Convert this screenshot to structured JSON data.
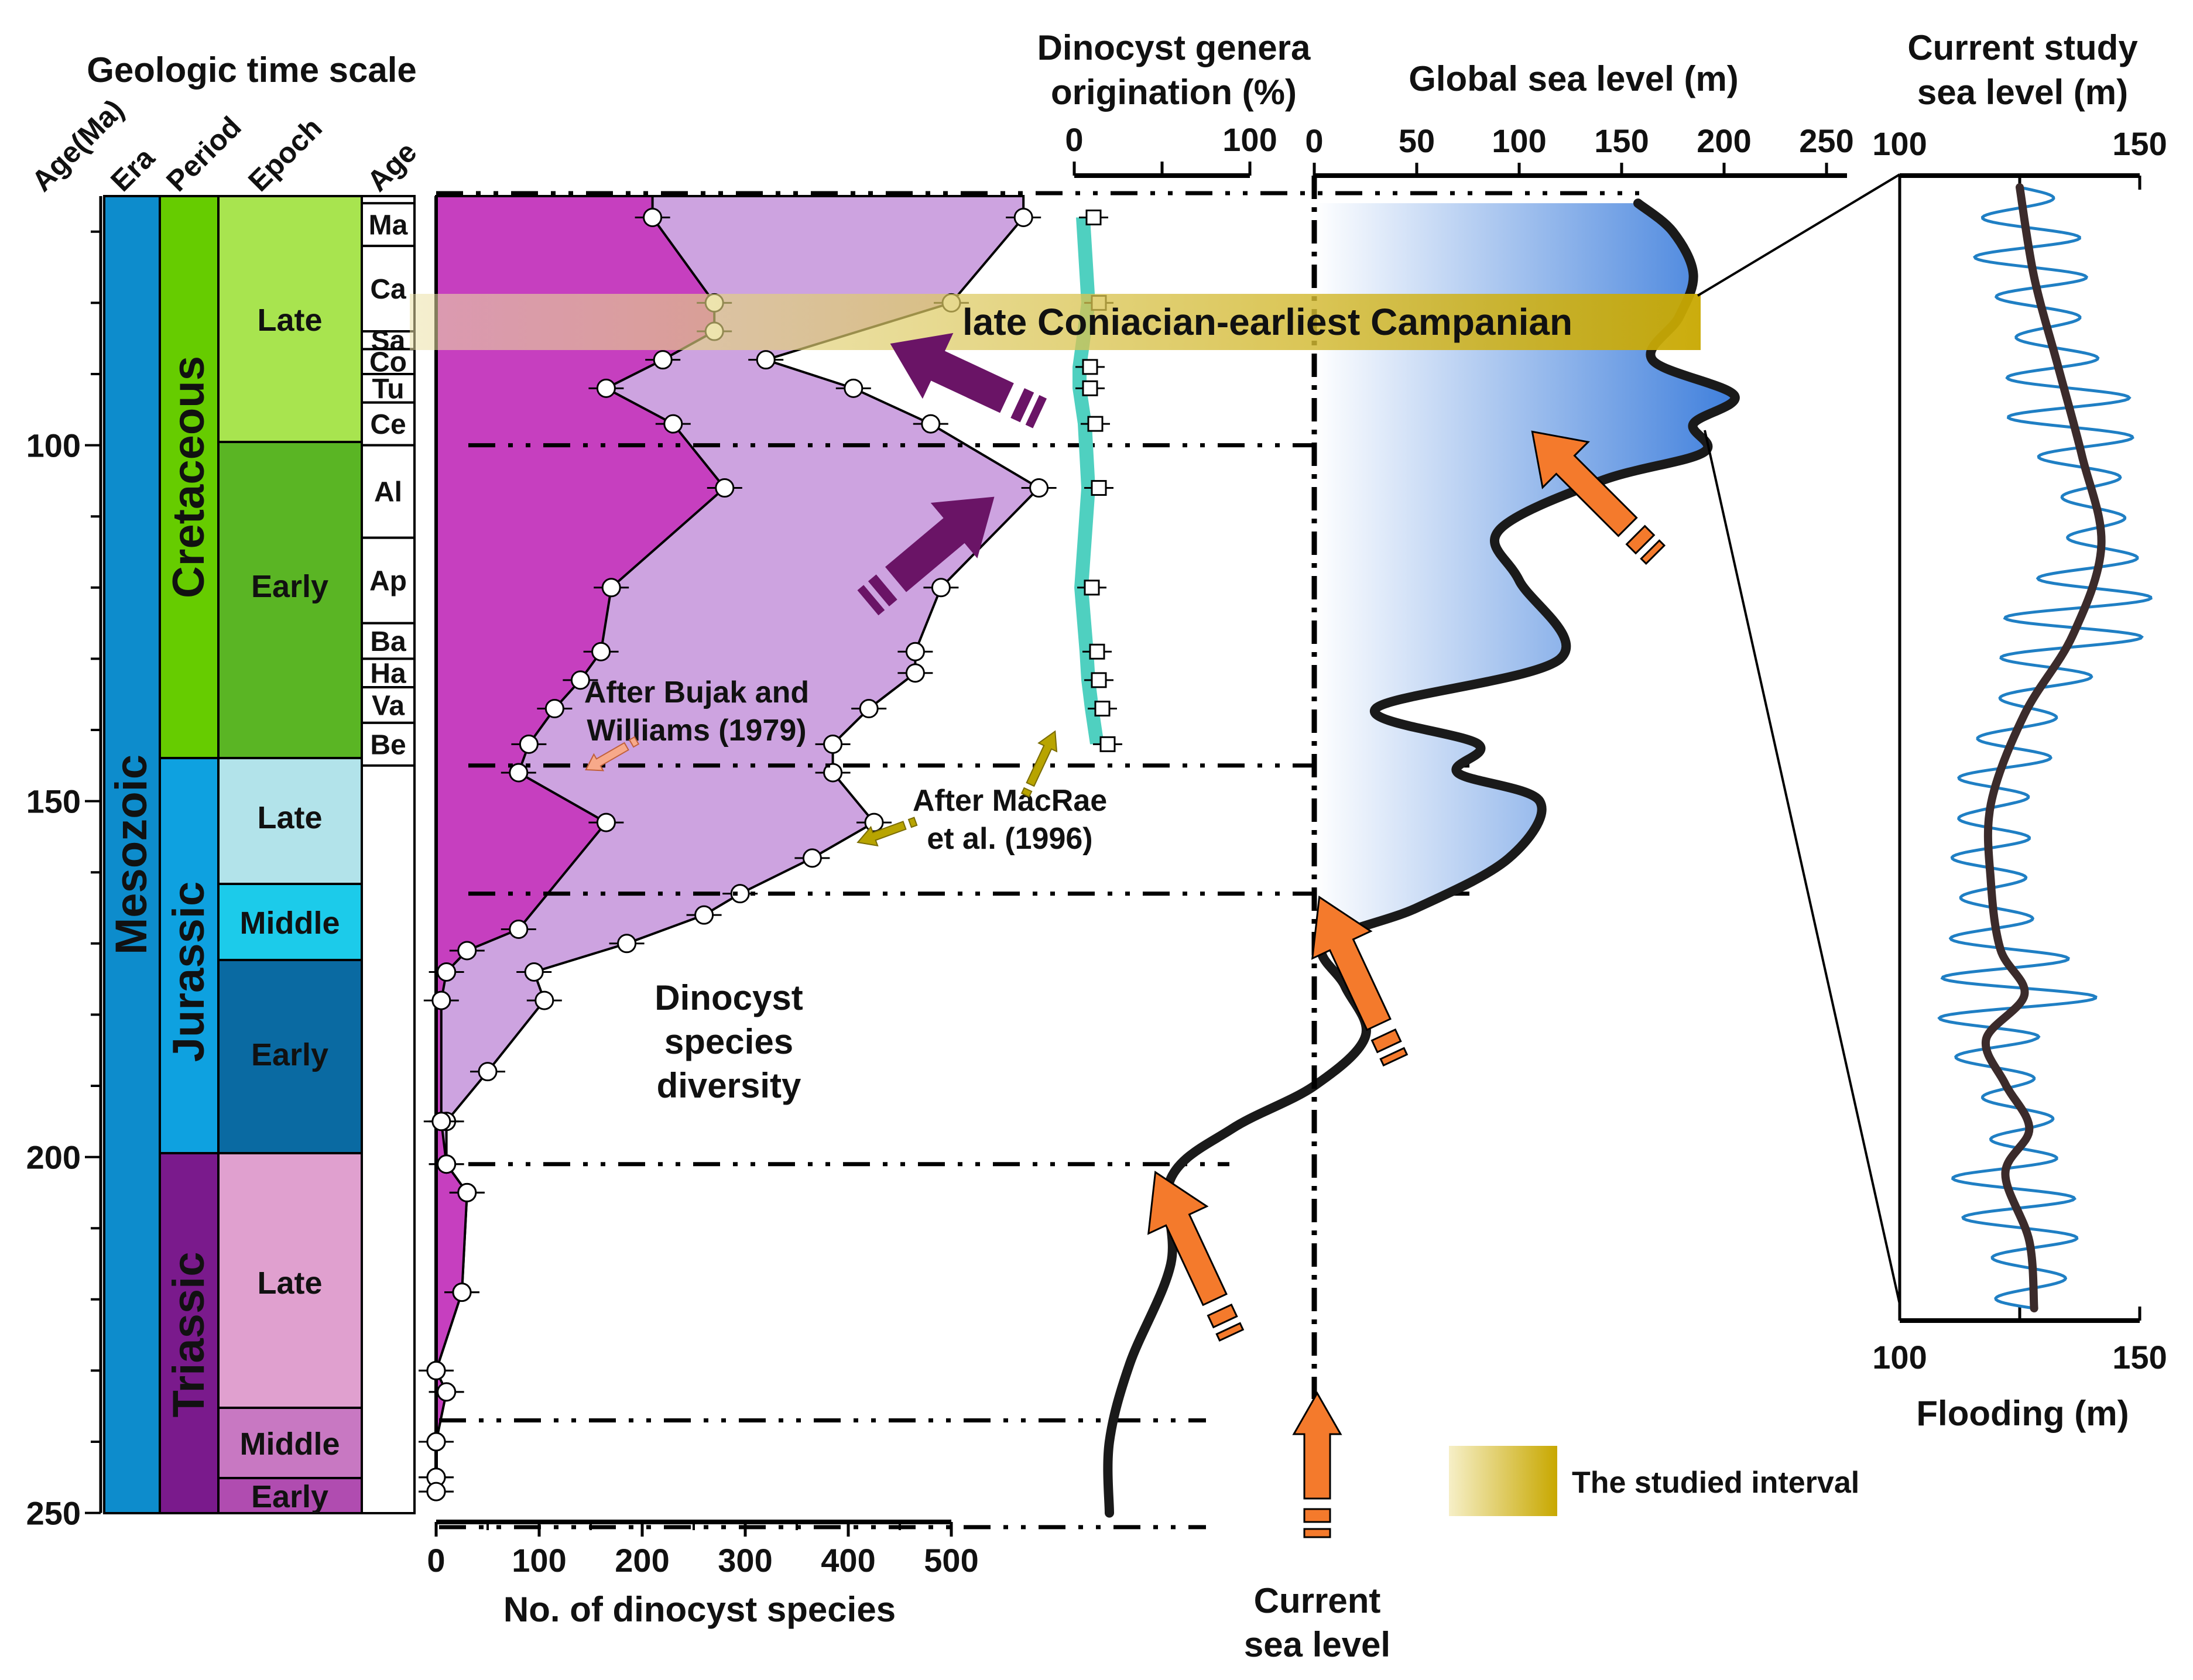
{
  "title_timescale": "Geologic time scale",
  "column_headers": [
    "Age(Ma)",
    "Era",
    "Period",
    "Epoch",
    "Age"
  ],
  "age_ticks": [
    "100",
    "150",
    "200",
    "250"
  ],
  "era": "Mesozoic",
  "periods": [
    "Cretaceous",
    "Jurassic",
    "Triassic"
  ],
  "epochs": [
    "Late",
    "Early",
    "Late",
    "Middle",
    "Early",
    "Late",
    "Middle",
    "Early"
  ],
  "stages": [
    "Ma",
    "Ca",
    "Sa",
    "Co",
    "Tu",
    "Ce",
    "Al",
    "Ap",
    "Ba",
    "Ha",
    "Va",
    "Be"
  ],
  "colors": {
    "mesozoic": "#0d8ccc",
    "cretaceous": "#66cc00",
    "jurassic": "#0ea1e0",
    "triassic": "#7a1a8c",
    "late_cretaceous": "#a8e44f",
    "early_cretaceous": "#5ab524",
    "late_jurassic": "#b2e3ea",
    "middle_jurassic": "#1ccbea",
    "early_jurassic": "#0a6aa2",
    "late_triassic": "#e0a0cf",
    "middle_triassic": "#c878c2",
    "early_triassic": "#b04cb0",
    "diversity_dark": "#c63fbf",
    "diversity_light": "#cda3e0",
    "origination": "#4fd0c0",
    "sea_level_fill": "#3f7fdc",
    "studied_band": "#c8a800",
    "arrow_orange": "#f47a2c",
    "arrow_purple": "#6a1466",
    "arrow_olive": "#b8a400"
  },
  "highlight_label": "late Coniacian-earliest Campanian",
  "annotations": {
    "bujak": [
      "After Bujak and",
      "Williams (1979)"
    ],
    "macrae": [
      "After MacRae",
      "et al. (1996)"
    ],
    "diversity": [
      "Dinocyst",
      "species",
      "diversity"
    ],
    "current_sea_level": [
      "Current",
      "sea level"
    ]
  },
  "legend": {
    "studied_interval": "The studied interval"
  },
  "chart_data": [
    {
      "type": "area",
      "xlabel": "No. of dinocyst species",
      "xticks": [
        "0",
        "100",
        "200",
        "300",
        "400",
        "500"
      ],
      "xlim": [
        0,
        500
      ],
      "ylim": [
        250,
        65
      ],
      "series": [
        {
          "values": [
            {
              "age": 68,
              "species": 210
            },
            {
              "age": 80,
              "species": 270
            },
            {
              "age": 84,
              "species": 270
            },
            {
              "age": 88,
              "species": 220
            },
            {
              "age": 92,
              "species": 165
            },
            {
              "age": 97,
              "species": 230
            },
            {
              "age": 106,
              "species": 280
            },
            {
              "age": 120,
              "species": 170
            },
            {
              "age": 129,
              "species": 160
            },
            {
              "age": 133,
              "species": 140
            },
            {
              "age": 137,
              "species": 115
            },
            {
              "age": 142,
              "species": 90
            },
            {
              "age": 146,
              "species": 80
            },
            {
              "age": 153,
              "species": 165
            },
            {
              "age": 168,
              "species": 80
            },
            {
              "age": 171,
              "species": 30
            },
            {
              "age": 174,
              "species": 10
            },
            {
              "age": 178,
              "species": 5
            },
            {
              "age": 195,
              "species": 5
            },
            {
              "age": 201,
              "species": 10
            },
            {
              "age": 205,
              "species": 30
            },
            {
              "age": 219,
              "species": 25
            },
            {
              "age": 230,
              "species": 0
            },
            {
              "age": 233,
              "species": 10
            },
            {
              "age": 240,
              "species": 0
            },
            {
              "age": 245,
              "species": 0
            },
            {
              "age": 247,
              "species": 0
            }
          ]
        },
        {
          "values": [
            {
              "age": 68,
              "species": 570
            },
            {
              "age": 80,
              "species": 500
            },
            {
              "age": 88,
              "species": 320
            },
            {
              "age": 92,
              "species": 405
            },
            {
              "age": 97,
              "species": 480
            },
            {
              "age": 106,
              "species": 585
            },
            {
              "age": 120,
              "species": 490
            },
            {
              "age": 129,
              "species": 465
            },
            {
              "age": 132,
              "species": 465
            },
            {
              "age": 137,
              "species": 420
            },
            {
              "age": 142,
              "species": 385
            },
            {
              "age": 146,
              "species": 385
            },
            {
              "age": 153,
              "species": 425
            },
            {
              "age": 158,
              "species": 365
            },
            {
              "age": 163,
              "species": 295
            },
            {
              "age": 166,
              "species": 260
            },
            {
              "age": 170,
              "species": 185
            },
            {
              "age": 174,
              "species": 95
            },
            {
              "age": 178,
              "species": 105
            },
            {
              "age": 188,
              "species": 50
            },
            {
              "age": 195,
              "species": 10
            },
            {
              "age": 201,
              "species": 10
            },
            {
              "age": 205,
              "species": 30
            },
            {
              "age": 219,
              "species": 25
            },
            {
              "age": 230,
              "species": 0
            },
            {
              "age": 233,
              "species": 10
            },
            {
              "age": 240,
              "species": 0
            },
            {
              "age": 245,
              "species": 0
            },
            {
              "age": 247,
              "species": 0
            }
          ]
        }
      ]
    },
    {
      "type": "line",
      "title": "Dinocyst genera origination (%)",
      "xticks": [
        "0",
        "100"
      ],
      "xlim": [
        0,
        100
      ],
      "series": [
        {
          "values": [
            {
              "age": 68,
              "percent": 5
            },
            {
              "age": 80,
              "percent": 8
            },
            {
              "age": 89,
              "percent": 3
            },
            {
              "age": 92,
              "percent": 3
            },
            {
              "age": 97,
              "percent": 6
            },
            {
              "age": 106,
              "percent": 8
            },
            {
              "age": 120,
              "percent": 4
            },
            {
              "age": 129,
              "percent": 7
            },
            {
              "age": 133,
              "percent": 8
            },
            {
              "age": 137,
              "percent": 10
            },
            {
              "age": 142,
              "percent": 13
            }
          ]
        }
      ]
    },
    {
      "type": "line",
      "title": "Global sea level (m)",
      "xticks": [
        "0",
        "50",
        "100",
        "150",
        "200",
        "250"
      ],
      "xlim": [
        0,
        250
      ],
      "series": [
        {
          "values": [
            {
              "age": 66,
              "sea_level_m": 158
            },
            {
              "age": 70,
              "sea_level_m": 175
            },
            {
              "age": 76,
              "sea_level_m": 185
            },
            {
              "age": 82,
              "sea_level_m": 178
            },
            {
              "age": 88,
              "sea_level_m": 165
            },
            {
              "age": 93,
              "sea_level_m": 205
            },
            {
              "age": 97,
              "sea_level_m": 185
            },
            {
              "age": 101,
              "sea_level_m": 190
            },
            {
              "age": 105,
              "sea_level_m": 140
            },
            {
              "age": 112,
              "sea_level_m": 90
            },
            {
              "age": 119,
              "sea_level_m": 100
            },
            {
              "age": 130,
              "sea_level_m": 120
            },
            {
              "age": 137,
              "sea_level_m": 30
            },
            {
              "age": 142,
              "sea_level_m": 80
            },
            {
              "age": 146,
              "sea_level_m": 70
            },
            {
              "age": 150,
              "sea_level_m": 110
            },
            {
              "age": 158,
              "sea_level_m": 95
            },
            {
              "age": 165,
              "sea_level_m": 50
            },
            {
              "age": 170,
              "sea_level_m": 5
            },
            {
              "age": 176,
              "sea_level_m": 15
            },
            {
              "age": 183,
              "sea_level_m": 25
            },
            {
              "age": 190,
              "sea_level_m": 0
            },
            {
              "age": 196,
              "sea_level_m": -40
            },
            {
              "age": 203,
              "sea_level_m": -70
            },
            {
              "age": 215,
              "sea_level_m": -70
            },
            {
              "age": 229,
              "sea_level_m": -90
            },
            {
              "age": 240,
              "sea_level_m": -100
            },
            {
              "age": 250,
              "sea_level_m": -100
            }
          ]
        }
      ]
    },
    {
      "type": "line",
      "title": "Current study sea level (m)",
      "xlabel": "Flooding (m)",
      "xticks": [
        "100",
        "150"
      ],
      "xlim": [
        100,
        150
      ],
      "series": [
        {
          "values": [
            {
              "depth": 0.0,
              "sea_level_m": 125
            },
            {
              "depth": 0.08,
              "sea_level_m": 128
            },
            {
              "depth": 0.16,
              "sea_level_m": 133
            },
            {
              "depth": 0.24,
              "sea_level_m": 138
            },
            {
              "depth": 0.32,
              "sea_level_m": 142
            },
            {
              "depth": 0.4,
              "sea_level_m": 136
            },
            {
              "depth": 0.47,
              "sea_level_m": 126
            },
            {
              "depth": 0.55,
              "sea_level_m": 119
            },
            {
              "depth": 0.62,
              "sea_level_m": 119
            },
            {
              "depth": 0.68,
              "sea_level_m": 121
            },
            {
              "depth": 0.72,
              "sea_level_m": 126
            },
            {
              "depth": 0.76,
              "sea_level_m": 118
            },
            {
              "depth": 0.8,
              "sea_level_m": 122
            },
            {
              "depth": 0.84,
              "sea_level_m": 127
            },
            {
              "depth": 0.88,
              "sea_level_m": 122
            },
            {
              "depth": 0.94,
              "sea_level_m": 127
            },
            {
              "depth": 1.0,
              "sea_level_m": 128
            }
          ]
        }
      ]
    }
  ]
}
